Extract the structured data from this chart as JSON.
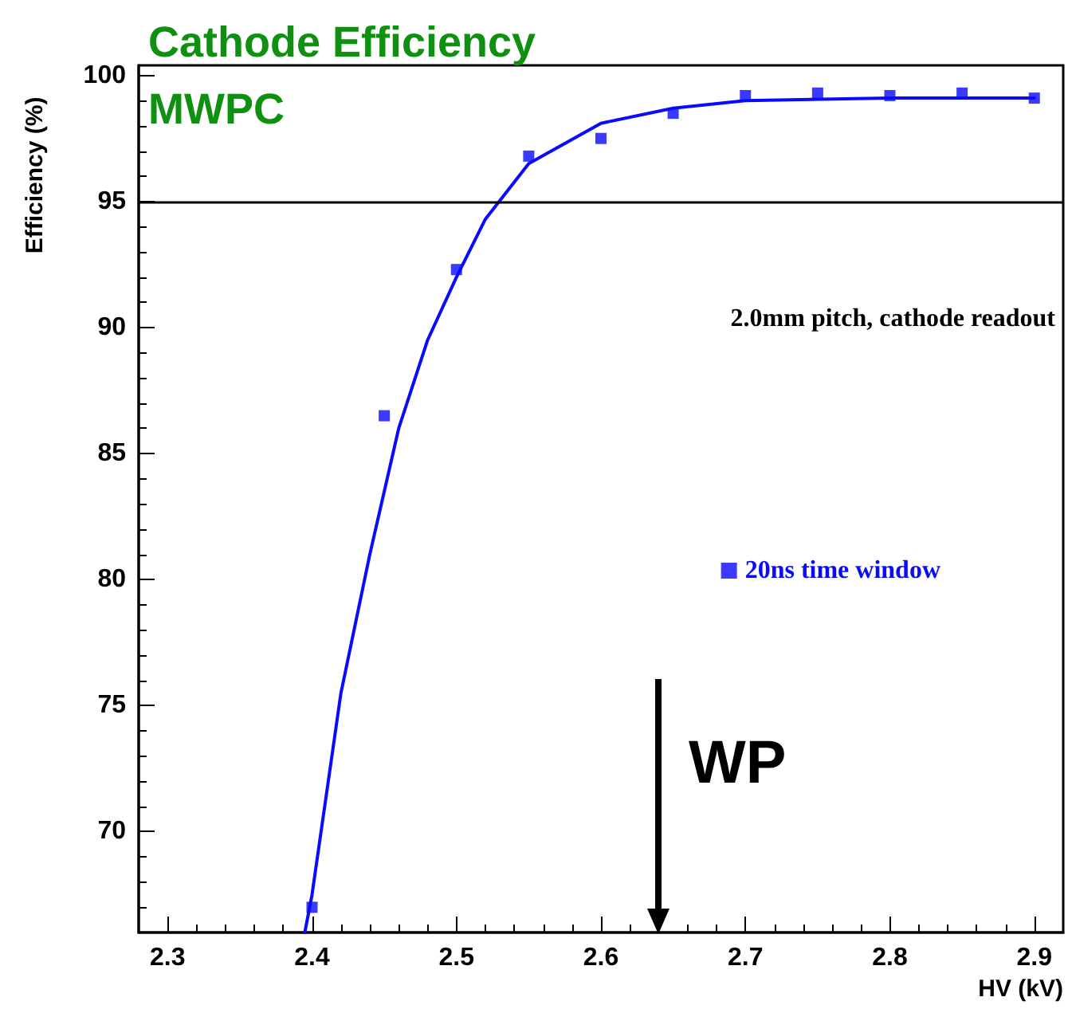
{
  "chart_data": {
    "type": "scatter",
    "title": "Cathode Efficiency",
    "subtitle": "MWPC",
    "xlabel": "HV (kV)",
    "ylabel": "Efficiency (%)",
    "x": [
      2.4,
      2.45,
      2.5,
      2.55,
      2.6,
      2.65,
      2.7,
      2.75,
      2.8,
      2.85,
      2.9
    ],
    "series": [
      {
        "name": "20ns time window",
        "color": "#0a0aff",
        "marker": "square",
        "values": [
          67.0,
          86.5,
          92.3,
          96.8,
          97.5,
          98.5,
          99.2,
          99.3,
          99.2,
          99.3,
          99.1
        ]
      },
      {
        "type": "line",
        "color": "#0a0aff",
        "marker": "none",
        "x": [
          2.395,
          2.4,
          2.42,
          2.44,
          2.46,
          2.48,
          2.5,
          2.52,
          2.55,
          2.6,
          2.65,
          2.7,
          2.8,
          2.9
        ],
        "values": [
          66.0,
          67.5,
          75.5,
          81.0,
          86.0,
          89.5,
          92.0,
          94.3,
          96.5,
          98.1,
          98.7,
          99.0,
          99.1,
          99.1
        ]
      }
    ],
    "xlim": [
      2.28,
      2.92
    ],
    "ylim": [
      66,
      100.4
    ],
    "xticks": [
      2.3,
      2.4,
      2.5,
      2.6,
      2.7,
      2.8,
      2.9
    ],
    "yticks": [
      70,
      75,
      80,
      85,
      90,
      95,
      100
    ],
    "ref_lines": [
      {
        "axis": "y",
        "value": 95,
        "color": "#000000"
      }
    ],
    "annotations": [
      "2.0mm pitch, cathode readout",
      "WP"
    ],
    "legend": "right",
    "grid": false
  }
}
